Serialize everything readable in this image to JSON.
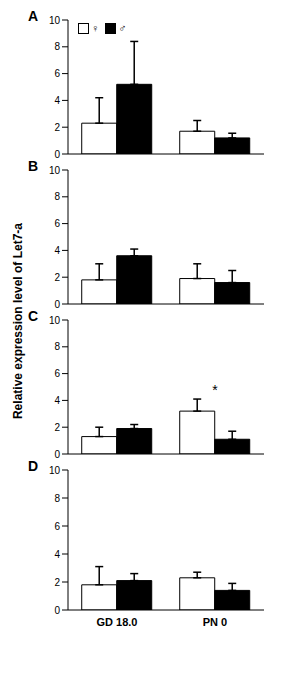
{
  "chart_data": [
    {
      "type": "bar",
      "title": "A",
      "categories": [
        "GD 18.0",
        "PN 0"
      ],
      "series": [
        {
          "name": "♀",
          "color": "#ffffff",
          "values": [
            2.3,
            1.7
          ],
          "errors": [
            1.9,
            0.8
          ]
        },
        {
          "name": "♂",
          "color": "#000000",
          "values": [
            5.2,
            1.2
          ],
          "errors": [
            3.2,
            0.35
          ]
        }
      ],
      "ylim": [
        0,
        10
      ],
      "yticks": [
        0,
        2,
        4,
        6,
        8,
        10
      ],
      "legend": "upper left",
      "tick_labels": "y"
    },
    {
      "type": "bar",
      "title": "B",
      "categories": [
        "GD 18.0",
        "PN 0"
      ],
      "series": [
        {
          "name": "♀",
          "color": "#ffffff",
          "values": [
            1.8,
            1.9
          ],
          "errors": [
            1.2,
            1.1
          ]
        },
        {
          "name": "♂",
          "color": "#000000",
          "values": [
            3.6,
            1.6
          ],
          "errors": [
            0.5,
            0.9
          ]
        }
      ],
      "ylim": [
        0,
        10
      ],
      "yticks": [
        0,
        2,
        4,
        6,
        8,
        10
      ],
      "tick_labels": "y"
    },
    {
      "type": "bar",
      "title": "C",
      "categories": [
        "GD 18.0",
        "PN 0"
      ],
      "series": [
        {
          "name": "♀",
          "color": "#ffffff",
          "values": [
            1.3,
            3.2
          ],
          "errors": [
            0.7,
            0.9
          ]
        },
        {
          "name": "♂",
          "color": "#000000",
          "values": [
            1.9,
            1.1
          ],
          "errors": [
            0.3,
            0.6
          ]
        }
      ],
      "ylim": [
        0,
        10
      ],
      "yticks": [
        0,
        2,
        4,
        6,
        8,
        10
      ],
      "tick_labels": "y",
      "y_label": "Relative expression level of Let7-a",
      "annotations": [
        {
          "text": "*",
          "x": "PN 0",
          "y": 4.8
        }
      ]
    },
    {
      "type": "bar",
      "title": "D",
      "categories": [
        "GD 18.0",
        "PN 0"
      ],
      "series": [
        {
          "name": "♀",
          "color": "#ffffff",
          "values": [
            1.8,
            2.3
          ],
          "errors": [
            1.3,
            0.4
          ]
        },
        {
          "name": "♂",
          "color": "#000000",
          "values": [
            2.1,
            1.4
          ],
          "errors": [
            0.5,
            0.5
          ]
        }
      ],
      "ylim": [
        0,
        10
      ],
      "yticks": [
        0,
        2,
        4,
        6,
        8,
        10
      ]
    }
  ]
}
